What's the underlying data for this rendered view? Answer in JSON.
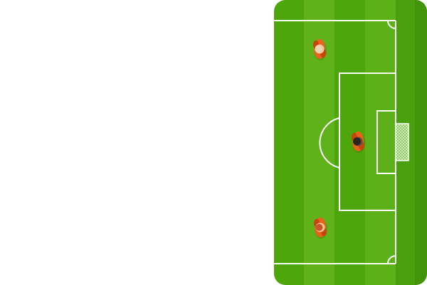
{
  "game": {
    "scene": "football-pitch-half-right",
    "colors": {
      "grass_light": "#62b61a",
      "grass_dark": "#4ea60d",
      "grass_edge": "#3d8a0a",
      "lines": "#ffffff",
      "net": "#cfe8c0",
      "background": "#ffffff"
    },
    "players": [
      {
        "id": "player-top",
        "hair": "#e9d7b4",
        "skin": "#f1c89a",
        "shirt": "#e8641c",
        "trim": "#c9430f"
      },
      {
        "id": "player-center",
        "hair": "#2a2320",
        "skin": "#6b4b3b",
        "shirt": "#e8641c",
        "trim": "#c9430f"
      },
      {
        "id": "player-bottom",
        "hair": "#c7542a",
        "skin": "#f1c89a",
        "shirt": "#e8641c",
        "trim": "#c9430f"
      }
    ]
  }
}
